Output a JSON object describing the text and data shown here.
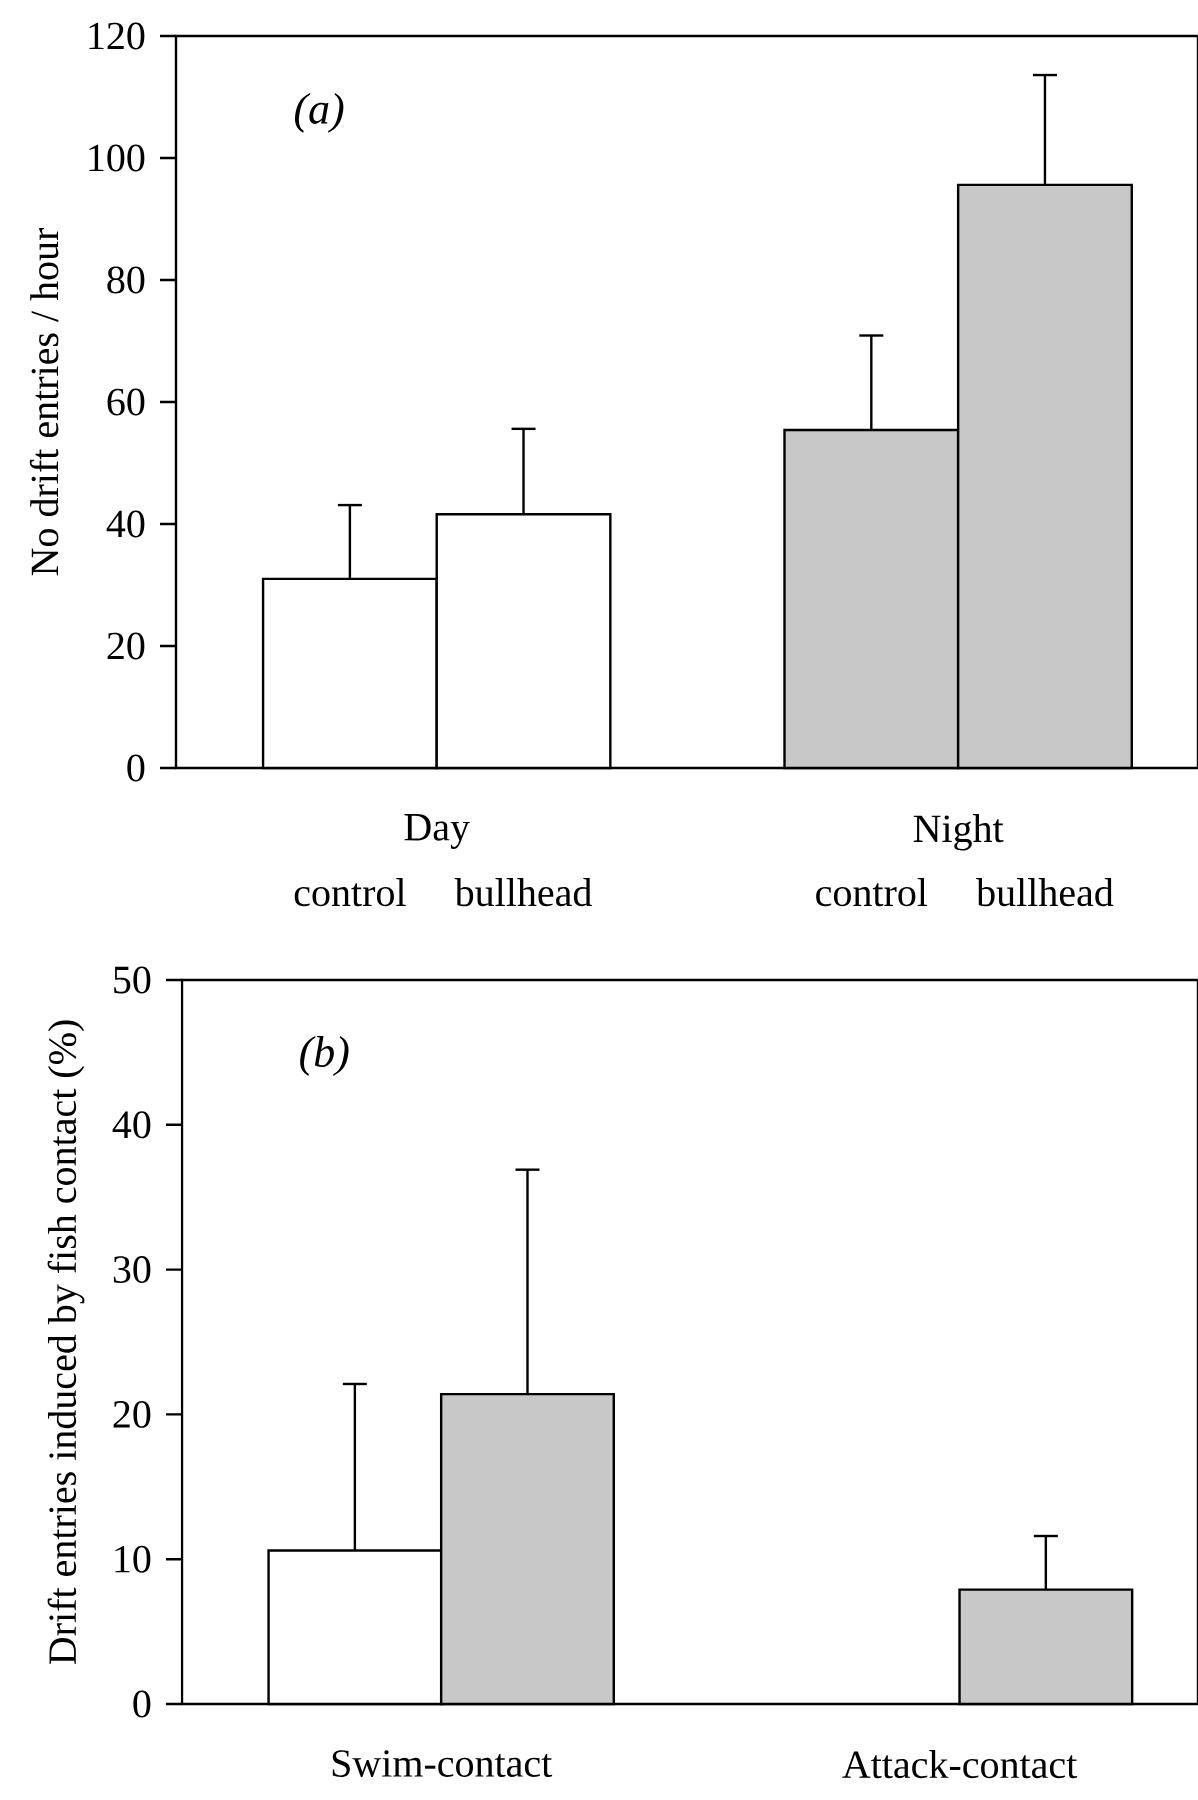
{
  "chart_data": [
    {
      "type": "bar",
      "categories": [
        "Day",
        "Night"
      ],
      "ylabel": "No drift entries / hour",
      "ylim": [
        0,
        120
      ],
      "yticks": [
        0,
        20,
        40,
        60,
        80,
        100,
        120
      ],
      "annotations": [
        "(a)"
      ],
      "series": [
        {
          "name": "control",
          "colors": [
            "#ffffff",
            "#c8c8c8"
          ],
          "values": [
            31.0,
            55.4
          ],
          "errors": [
            [
              31.0,
              43.1
            ],
            [
              55.4,
              70.9
            ]
          ]
        },
        {
          "name": "bullhead",
          "colors": [
            "#ffffff",
            "#c8c8c8"
          ],
          "values": [
            41.6,
            95.6
          ],
          "errors": [
            [
              41.6,
              55.6
            ],
            [
              95.6,
              113.6
            ]
          ]
        }
      ]
    },
    {
      "type": "bar",
      "categories": [
        "Swim-contact",
        "Attack-contact"
      ],
      "ylabel": "Drift entries induced by fish contact (%)",
      "ylim": [
        0,
        50
      ],
      "yticks": [
        0,
        10,
        20,
        30,
        40,
        50
      ],
      "annotations": [
        "(b)"
      ],
      "series": [
        {
          "colors": [
            "#ffffff",
            "#ffffff"
          ],
          "values": [
            10.6,
            null
          ],
          "errors": [
            [
              10.6,
              22.1
            ],
            null
          ]
        },
        {
          "colors": [
            "#c8c8c8",
            "#c8c8c8"
          ],
          "values": [
            21.4,
            7.9
          ],
          "errors": [
            [
              21.4,
              36.9
            ],
            [
              7.9,
              11.6
            ]
          ]
        }
      ]
    }
  ]
}
